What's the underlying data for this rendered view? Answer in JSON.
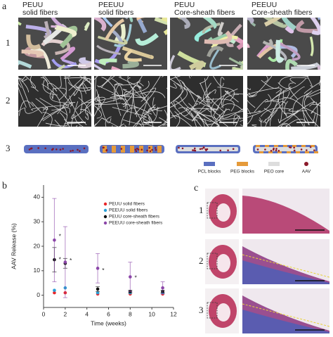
{
  "panel_a": {
    "label": "a",
    "columns": [
      {
        "line1": "PEUU",
        "line2": "solid fibers"
      },
      {
        "line1": "PEEUU",
        "line2": "solid fibers"
      },
      {
        "line1": "PEUU",
        "line2": "Core-sheath fibers"
      },
      {
        "line1": "PEEUU",
        "line2": "Core-sheath fibers"
      }
    ],
    "rows": [
      "1",
      "2",
      "3"
    ],
    "legend": [
      "PCL blocks",
      "PEG blocks",
      "PEO core",
      "AAV"
    ]
  },
  "panel_b": {
    "label": "b"
  },
  "chart_data": {
    "type": "scatter",
    "x_label": "Time (weeks)",
    "y_label": "AAV Release (%)",
    "x": [
      1,
      2,
      5,
      8,
      11
    ],
    "series": [
      {
        "name": "PEUU solid fibers",
        "color": "#e8262a",
        "values": [
          1,
          1,
          0.5,
          0.5,
          0.5
        ]
      },
      {
        "name": "PEEUU solid fibers",
        "color": "#2aa0d8",
        "values": [
          2,
          3,
          1,
          1,
          1
        ]
      },
      {
        "name": "PEUU core-sheath fibers",
        "color": "#111111",
        "values": [
          14.5,
          13,
          2.5,
          1.5,
          1.5
        ],
        "errors": [
          5,
          2,
          1,
          0.5,
          0.5
        ]
      },
      {
        "name": "PEEUU core-sheath fibers",
        "color": "#8b46a8",
        "values": [
          22.5,
          13.5,
          11,
          7.5,
          3
        ],
        "errors": [
          17,
          14.5,
          6,
          6,
          2.5
        ]
      }
    ],
    "xlim": [
      0,
      12
    ],
    "xticks": [
      0,
      2,
      4,
      6,
      8,
      10,
      12
    ],
    "ylim": [
      -5,
      45
    ],
    "yticks": [
      0,
      10,
      20,
      30,
      40
    ],
    "legend": "upper right",
    "annotations": [
      {
        "text": "*",
        "x": 1.4,
        "y": 24
      },
      {
        "text": "*",
        "x": 1.4,
        "y": 14.5
      },
      {
        "text": "*",
        "x": 2.4,
        "y": 14
      },
      {
        "text": "*",
        "x": 5.4,
        "y": 10
      },
      {
        "text": "*",
        "x": 8.4,
        "y": 7
      }
    ]
  },
  "panel_c": {
    "label": "c",
    "rows": [
      "1",
      "2",
      "3"
    ]
  }
}
